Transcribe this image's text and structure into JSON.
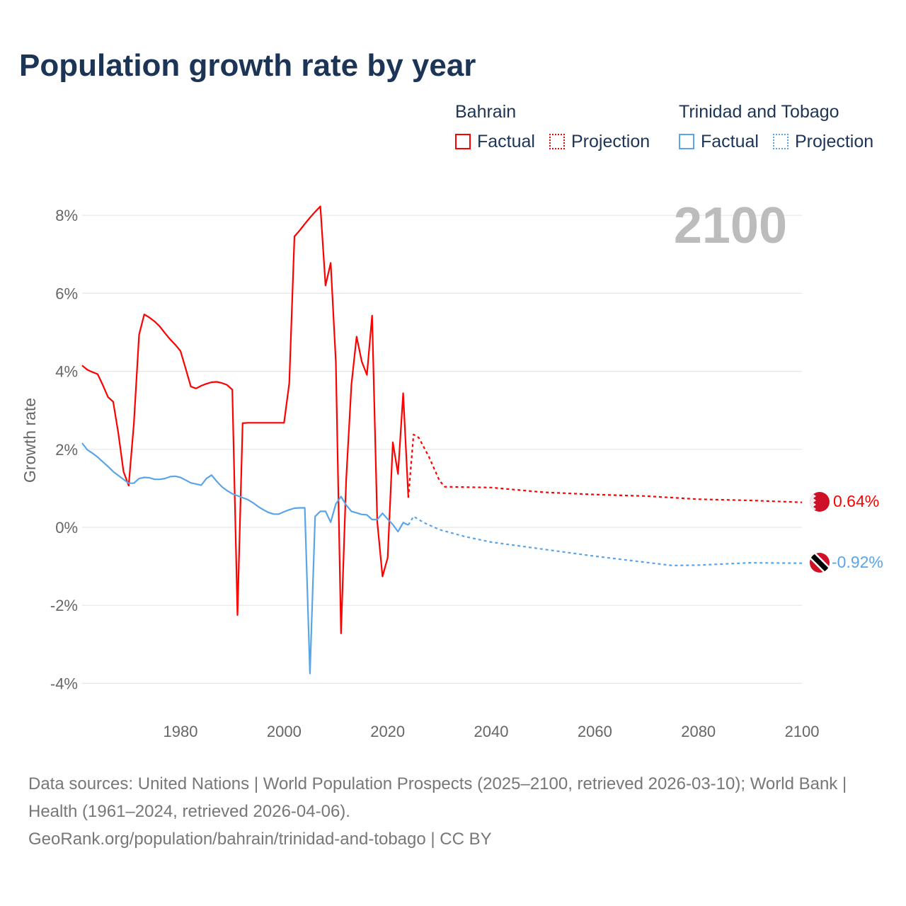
{
  "title": "Population growth rate by year",
  "legend": {
    "groups": [
      {
        "name": "Bahrain",
        "factual": "Factual",
        "projection": "Projection",
        "color": "#ff0000"
      },
      {
        "name": "Trinidad and Tobago",
        "factual": "Factual",
        "projection": "Projection",
        "color": "#5aa5e8"
      }
    ]
  },
  "current_year": "2100",
  "end_labels": {
    "bahrain": "0.64%",
    "trinidad": "-0.92%"
  },
  "source": {
    "line1": "Data sources: United Nations | World Population Prospects (2025–2100, retrieved 2026-03-10); World Bank | Health (1961–2024, retrieved 2026-04-06).",
    "line2": "GeoRank.org/population/bahrain/trinidad-and-tobago | CC BY"
  },
  "chart_data": {
    "type": "line",
    "title": "Population growth rate by year",
    "xlabel": "",
    "ylabel": "Growth rate",
    "xlim": [
      1961,
      2100
    ],
    "ylim": [
      -5,
      8.5
    ],
    "xticks": [
      1980,
      2000,
      2020,
      2040,
      2060,
      2080,
      2100
    ],
    "xtick_labels": [
      "1980",
      "2000",
      "2020",
      "2040",
      "2060",
      "2080",
      "2100"
    ],
    "yticks": [
      8,
      6,
      4,
      2,
      0,
      -2,
      -4
    ],
    "ytick_labels": [
      "8%",
      "6%",
      "4%",
      "2%",
      "0%",
      "-2%",
      "-4%"
    ],
    "grid": true,
    "legend_position": "top-right",
    "series": [
      {
        "name": "Bahrain Factual",
        "color": "#ff0000",
        "style": "solid",
        "x": [
          1961,
          1962,
          1963,
          1964,
          1965,
          1966,
          1967,
          1968,
          1969,
          1970,
          1971,
          1972,
          1973,
          1974,
          1975,
          1976,
          1977,
          1978,
          1979,
          1980,
          1981,
          1982,
          1983,
          1984,
          1985,
          1986,
          1987,
          1988,
          1989,
          1990,
          1991,
          1992,
          1993,
          1994,
          1995,
          1996,
          1997,
          1998,
          1999,
          2000,
          2001,
          2002,
          2003,
          2004,
          2005,
          2006,
          2007,
          2008,
          2009,
          2010,
          2011,
          2012,
          2013,
          2014,
          2015,
          2016,
          2017,
          2018,
          2019,
          2020,
          2021,
          2022,
          2023,
          2024
        ],
        "y": [
          4.15,
          4.04,
          3.98,
          3.93,
          3.65,
          3.34,
          3.22,
          2.41,
          1.43,
          1.07,
          2.65,
          4.94,
          5.46,
          5.38,
          5.28,
          5.15,
          4.98,
          4.82,
          4.68,
          4.52,
          4.07,
          3.61,
          3.56,
          3.63,
          3.68,
          3.72,
          3.73,
          3.7,
          3.65,
          3.53,
          -2.25,
          2.67,
          2.68,
          2.68,
          2.68,
          2.68,
          2.68,
          2.68,
          2.68,
          2.68,
          3.7,
          7.46,
          7.61,
          7.78,
          7.94,
          8.09,
          8.23,
          6.2,
          6.78,
          4.23,
          -2.72,
          1.23,
          3.66,
          4.89,
          4.25,
          3.91,
          5.43,
          0.14,
          -1.26,
          -0.78,
          2.18,
          1.37,
          3.44,
          0.76
        ]
      },
      {
        "name": "Bahrain Projection",
        "color": "#ff0000",
        "style": "dotted",
        "x": [
          2024,
          2025,
          2026,
          2027,
          2028,
          2029,
          2030,
          2031,
          2040,
          2050,
          2060,
          2070,
          2080,
          2090,
          2100
        ],
        "y": [
          0.76,
          2.38,
          2.3,
          2.05,
          1.8,
          1.5,
          1.2,
          1.04,
          1.02,
          0.9,
          0.84,
          0.8,
          0.72,
          0.69,
          0.64
        ]
      },
      {
        "name": "Trinidad and Tobago Factual",
        "color": "#5aa5e8",
        "style": "solid",
        "x": [
          1961,
          1962,
          1963,
          1964,
          1965,
          1966,
          1967,
          1968,
          1969,
          1970,
          1971,
          1972,
          1973,
          1974,
          1975,
          1976,
          1977,
          1978,
          1979,
          1980,
          1981,
          1982,
          1983,
          1984,
          1985,
          1986,
          1987,
          1988,
          1989,
          1990,
          1991,
          1992,
          1993,
          1994,
          1995,
          1996,
          1997,
          1998,
          1999,
          2000,
          2001,
          2002,
          2003,
          2004,
          2005,
          2006,
          2007,
          2008,
          2009,
          2010,
          2011,
          2012,
          2013,
          2014,
          2015,
          2016,
          2017,
          2018,
          2019,
          2020,
          2021,
          2022,
          2023,
          2024
        ],
        "y": [
          2.16,
          1.99,
          1.9,
          1.8,
          1.68,
          1.56,
          1.43,
          1.33,
          1.23,
          1.13,
          1.13,
          1.25,
          1.28,
          1.27,
          1.23,
          1.23,
          1.25,
          1.3,
          1.31,
          1.28,
          1.21,
          1.14,
          1.11,
          1.08,
          1.25,
          1.34,
          1.18,
          1.04,
          0.94,
          0.86,
          0.81,
          0.76,
          0.71,
          0.63,
          0.53,
          0.45,
          0.38,
          0.34,
          0.34,
          0.4,
          0.45,
          0.49,
          0.5,
          0.5,
          -3.75,
          0.28,
          0.41,
          0.41,
          0.13,
          0.6,
          0.79,
          0.57,
          0.41,
          0.37,
          0.33,
          0.32,
          0.2,
          0.2,
          0.36,
          0.21,
          0.07,
          -0.11,
          0.12,
          0.06
        ]
      },
      {
        "name": "Trinidad and Tobago Projection",
        "color": "#5aa5e8",
        "style": "dotted",
        "x": [
          2024,
          2025,
          2027,
          2030,
          2035,
          2040,
          2050,
          2060,
          2070,
          2075,
          2080,
          2090,
          2100
        ],
        "y": [
          0.06,
          0.28,
          0.12,
          -0.06,
          -0.24,
          -0.38,
          -0.56,
          -0.74,
          -0.9,
          -0.98,
          -0.97,
          -0.91,
          -0.92
        ]
      }
    ]
  }
}
